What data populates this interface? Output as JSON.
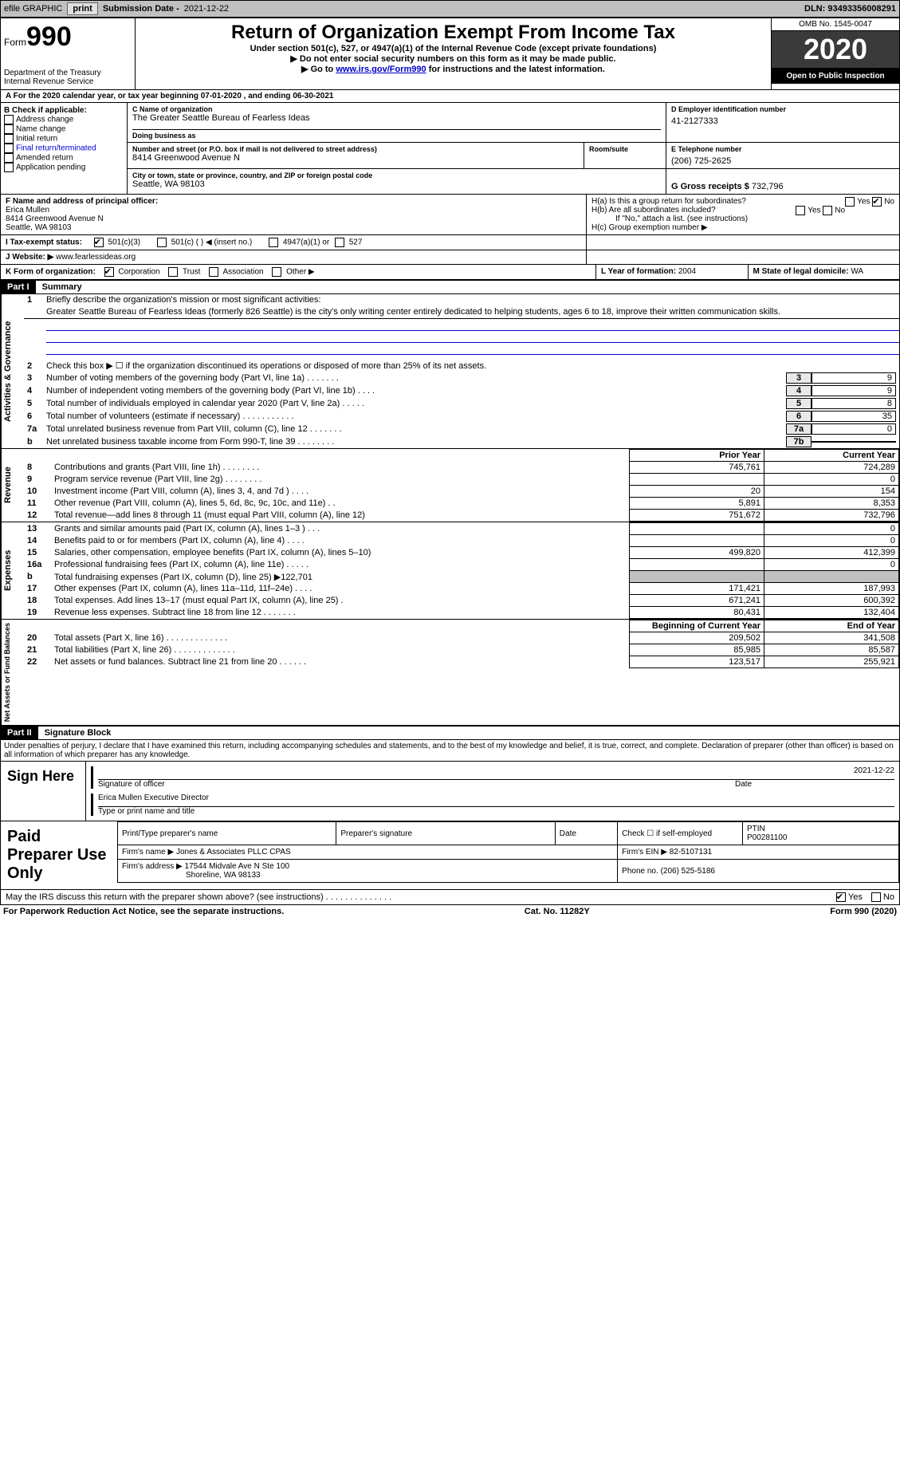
{
  "topbar": {
    "efile": "efile GRAPHIC",
    "print": "print",
    "submission_label": "Submission Date -",
    "submission_date": "2021-12-22",
    "dln_label": "DLN:",
    "dln": "93493356008291"
  },
  "header": {
    "form_label": "Form",
    "form_number": "990",
    "dept": "Department of the Treasury\nInternal Revenue Service",
    "title": "Return of Organization Exempt From Income Tax",
    "sub1": "Under section 501(c), 527, or 4947(a)(1) of the Internal Revenue Code (except private foundations)",
    "sub2": "▶ Do not enter social security numbers on this form as it may be made public.",
    "sub3_pre": "▶ Go to ",
    "sub3_link": "www.irs.gov/Form990",
    "sub3_post": " for instructions and the latest information.",
    "omb": "OMB No. 1545-0047",
    "year": "2020",
    "open": "Open to Public Inspection"
  },
  "line_a": "A For the 2020 calendar year, or tax year beginning 07-01-2020    , and ending 06-30-2021",
  "box_b": {
    "title": "B Check if applicable:",
    "items": [
      "Address change",
      "Name change",
      "Initial return",
      "Final return/terminated",
      "Amended return",
      "Application pending"
    ]
  },
  "box_c": {
    "label": "C Name of organization",
    "name": "The Greater Seattle Bureau of Fearless Ideas",
    "dba_label": "Doing business as",
    "addr_label": "Number and street (or P.O. box if mail is not delivered to street address)",
    "addr": "8414 Greenwood Avenue N",
    "room_label": "Room/suite",
    "city_label": "City or town, state or province, country, and ZIP or foreign postal code",
    "city": "Seattle, WA  98103"
  },
  "box_d": {
    "label": "D Employer identification number",
    "ein": "41-2127333"
  },
  "box_e": {
    "label": "E Telephone number",
    "phone": "(206) 725-2625"
  },
  "box_g": {
    "label": "G Gross receipts $",
    "amount": "732,796"
  },
  "box_f": {
    "label": "F Name and address of principal officer:",
    "name": "Erica Mullen",
    "addr1": "8414 Greenwood Avenue N",
    "addr2": "Seattle, WA  98103"
  },
  "box_h": {
    "ha": "H(a)  Is this a group return for subordinates?",
    "hb": "H(b)  Are all subordinates included?",
    "hb_note": "If \"No,\" attach a list. (see instructions)",
    "hc": "H(c)  Group exemption number ▶",
    "yes": "Yes",
    "no": "No"
  },
  "line_i": {
    "label": "I    Tax-exempt status:",
    "o1": "501(c)(3)",
    "o2": "501(c) (   ) ◀ (insert no.)",
    "o3": "4947(a)(1) or",
    "o4": "527"
  },
  "line_j": {
    "label": "J   Website: ▶",
    "value": "www.fearlessideas.org"
  },
  "line_k": {
    "label": "K Form of organization:",
    "o1": "Corporation",
    "o2": "Trust",
    "o3": "Association",
    "o4": "Other ▶"
  },
  "line_l": {
    "label": "L Year of formation:",
    "value": "2004"
  },
  "line_m": {
    "label": "M State of legal domicile:",
    "value": "WA"
  },
  "part1": {
    "label": "Part I",
    "title": "Summary",
    "q1_label": "1",
    "q1": "Briefly describe the organization's mission or most significant activities:",
    "mission": "Greater Seattle Bureau of Fearless Ideas (formerly 826 Seattle) is the city's only writing center entirely dedicated to helping students, ages 6 to 18, improve their written communication skills.",
    "q2": "Check this box ▶ ☐  if the organization discontinued its operations or disposed of more than 25% of its net assets.",
    "side_gov": "Activities & Governance",
    "side_rev": "Revenue",
    "side_exp": "Expenses",
    "side_net": "Net Assets or Fund Balances",
    "lines_gov": [
      {
        "n": "3",
        "d": "Number of voting members of the governing body (Part VI, line 1a)   .    .    .    .    .    .    .",
        "b": "3",
        "v": "9"
      },
      {
        "n": "4",
        "d": "Number of independent voting members of the governing body (Part VI, line 1b)    .    .    .    .",
        "b": "4",
        "v": "9"
      },
      {
        "n": "5",
        "d": "Total number of individuals employed in calendar year 2020 (Part V, line 2a)   .    .    .    .    .",
        "b": "5",
        "v": "8"
      },
      {
        "n": "6",
        "d": "Total number of volunteers (estimate if necessary)    .    .    .    .    .    .    .    .    .    .    .",
        "b": "6",
        "v": "35"
      },
      {
        "n": "7a",
        "d": "Total unrelated business revenue from Part VIII, column (C), line 12   .    .    .    .    .    .    .",
        "b": "7a",
        "v": "0"
      },
      {
        "n": "b",
        "d": "Net unrelated business taxable income from Form 990-T, line 39    .    .    .    .    .    .    .    .",
        "b": "7b",
        "v": ""
      }
    ],
    "col_py": "Prior Year",
    "col_cy": "Current Year",
    "lines_rev": [
      {
        "n": "8",
        "d": "Contributions and grants (Part VIII, line 1h)    .    .    .    .    .    .    .    .",
        "py": "745,761",
        "cy": "724,289"
      },
      {
        "n": "9",
        "d": "Program service revenue (Part VIII, line 2g)    .    .    .    .    .    .    .    .",
        "py": "",
        "cy": "0"
      },
      {
        "n": "10",
        "d": "Investment income (Part VIII, column (A), lines 3, 4, and 7d )    .    .    .    .",
        "py": "20",
        "cy": "154"
      },
      {
        "n": "11",
        "d": "Other revenue (Part VIII, column (A), lines 5, 6d, 8c, 9c, 10c, and 11e)    .    .",
        "py": "5,891",
        "cy": "8,353"
      },
      {
        "n": "12",
        "d": "Total revenue—add lines 8 through 11 (must equal Part VIII, column (A), line 12)",
        "py": "751,672",
        "cy": "732,796"
      }
    ],
    "lines_exp": [
      {
        "n": "13",
        "d": "Grants and similar amounts paid (Part IX, column (A), lines 1–3 )    .    .    .",
        "py": "",
        "cy": "0"
      },
      {
        "n": "14",
        "d": "Benefits paid to or for members (Part IX, column (A), line 4)    .    .    .    .",
        "py": "",
        "cy": "0"
      },
      {
        "n": "15",
        "d": "Salaries, other compensation, employee benefits (Part IX, column (A), lines 5–10)",
        "py": "499,820",
        "cy": "412,399"
      },
      {
        "n": "16a",
        "d": "Professional fundraising fees (Part IX, column (A), line 11e)    .    .    .    .    .",
        "py": "",
        "cy": "0"
      },
      {
        "n": "b",
        "d": "Total fundraising expenses (Part IX, column (D), line 25) ▶122,701",
        "py": "shade",
        "cy": "shade"
      },
      {
        "n": "17",
        "d": "Other expenses (Part IX, column (A), lines 11a–11d, 11f–24e)    .    .    .    .",
        "py": "171,421",
        "cy": "187,993"
      },
      {
        "n": "18",
        "d": "Total expenses. Add lines 13–17 (must equal Part IX, column (A), line 25)    .",
        "py": "671,241",
        "cy": "600,392"
      },
      {
        "n": "19",
        "d": "Revenue less expenses. Subtract line 18 from line 12    .    .    .    .    .    .    .",
        "py": "80,431",
        "cy": "132,404"
      }
    ],
    "col_boy": "Beginning of Current Year",
    "col_eoy": "End of Year",
    "lines_net": [
      {
        "n": "20",
        "d": "Total assets (Part X, line 16)    .    .    .    .    .    .    .    .    .    .    .    .    .",
        "py": "209,502",
        "cy": "341,508"
      },
      {
        "n": "21",
        "d": "Total liabilities (Part X, line 26)    .    .    .    .    .    .    .    .    .    .    .    .    .",
        "py": "85,985",
        "cy": "85,587"
      },
      {
        "n": "22",
        "d": "Net assets or fund balances. Subtract line 21 from line 20   .    .    .    .    .    .",
        "py": "123,517",
        "cy": "255,921"
      }
    ]
  },
  "part2": {
    "label": "Part II",
    "title": "Signature Block",
    "declare": "Under penalties of perjury, I declare that I have examined this return, including accompanying schedules and statements, and to the best of my knowledge and belief, it is true, correct, and complete. Declaration of preparer (other than officer) is based on all information of which preparer has any knowledge.",
    "sign_here": "Sign Here",
    "sig_officer": "Signature of officer",
    "sig_date": "Date",
    "sig_date_val": "2021-12-22",
    "sig_name": "Erica Mullen  Executive Director",
    "sig_name_label": "Type or print name and title",
    "paid_prep": "Paid Preparer Use Only",
    "pt_name_label": "Print/Type preparer's name",
    "pt_sig_label": "Preparer's signature",
    "pt_date_label": "Date",
    "pt_check_label": "Check ☐ if self-employed",
    "ptin_label": "PTIN",
    "ptin": "P00281100",
    "firm_name_label": "Firm's name    ▶",
    "firm_name": "Jones & Associates PLLC CPAS",
    "firm_ein_label": "Firm's EIN ▶",
    "firm_ein": "82-5107131",
    "firm_addr_label": "Firm's address ▶",
    "firm_addr": "17544 Midvale Ave N Ste 100",
    "firm_city": "Shoreline, WA  98133",
    "firm_phone_label": "Phone no.",
    "firm_phone": "(206) 525-5186",
    "discuss": "May the IRS discuss this return with the preparer shown above? (see instructions)    .    .    .    .    .    .    .    .    .    .    .    .    .    .",
    "yes": "Yes",
    "no": "No"
  },
  "footer": {
    "left": "For Paperwork Reduction Act Notice, see the separate instructions.",
    "mid": "Cat. No. 11282Y",
    "right": "Form 990 (2020)"
  }
}
